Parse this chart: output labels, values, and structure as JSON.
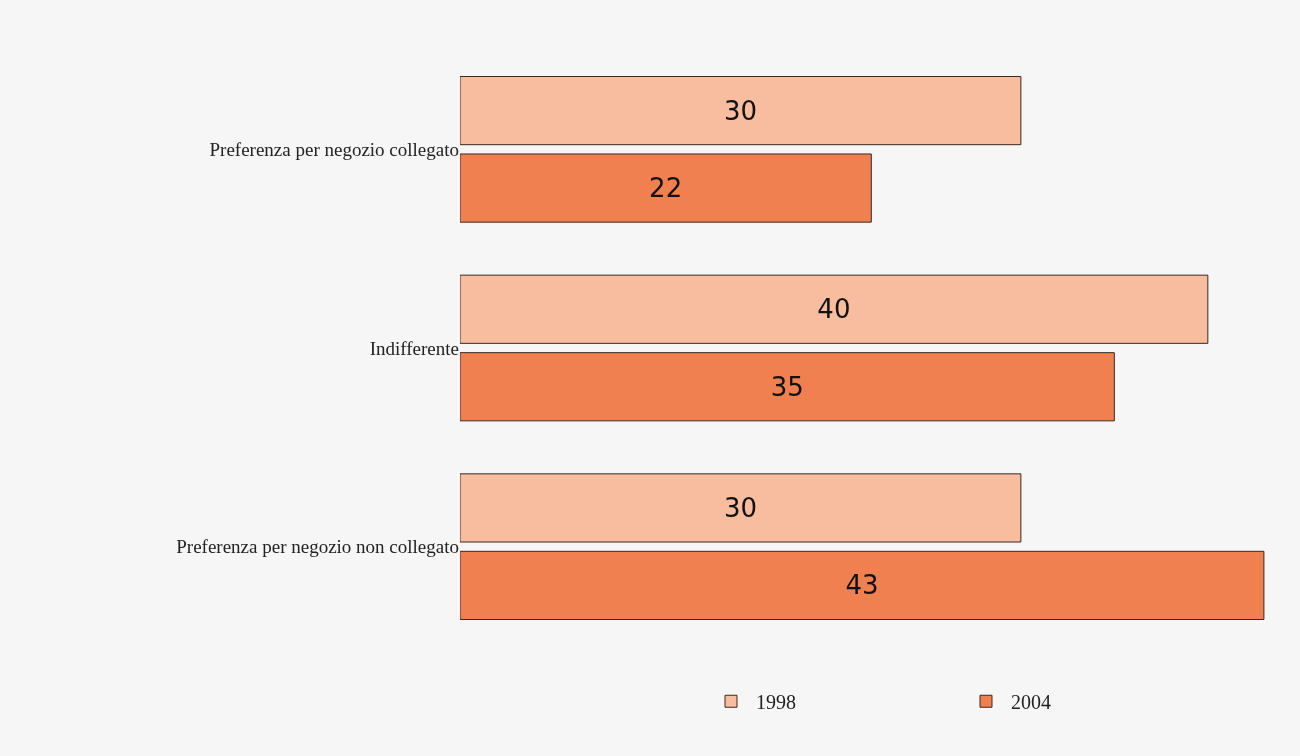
{
  "chart_data": {
    "type": "bar",
    "orientation": "horizontal",
    "categories": [
      "Preferenza per negozio collegato",
      "Indifferente",
      "Preferenza per negozio non collegato"
    ],
    "series": [
      {
        "name": "1998",
        "color": "#f8bc9e",
        "values": [
          30,
          40,
          30
        ]
      },
      {
        "name": "2004",
        "color": "#f08050",
        "values": [
          22,
          35,
          43
        ]
      }
    ],
    "data_labels": true,
    "legend": "bottom",
    "grid": false
  }
}
